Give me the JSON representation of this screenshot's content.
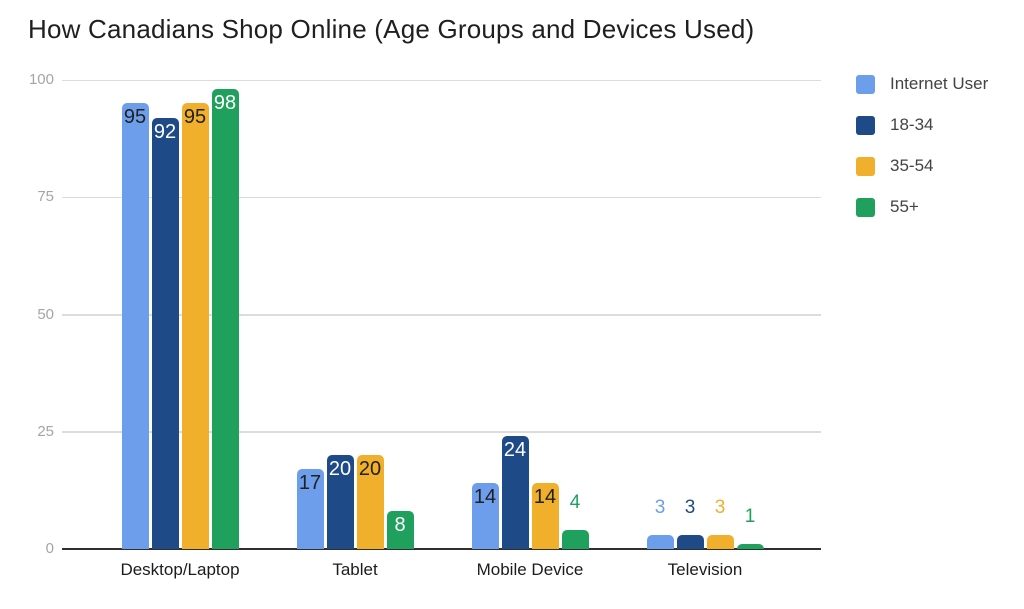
{
  "title": "How Canadians Shop Online (Age Groups and Devices Used)",
  "chart_data": {
    "type": "bar",
    "title": "How Canadians Shop Online (Age Groups and Devices Used)",
    "categories": [
      "Desktop/Laptop",
      "Tablet",
      "Mobile Device",
      "Television"
    ],
    "series": [
      {
        "name": "Internet User",
        "color": "#6d9eeb",
        "label_text_color": "#212121",
        "values": [
          95,
          17,
          14,
          3
        ]
      },
      {
        "name": "18-34",
        "color": "#1e4a87",
        "label_text_color": "#ffffff",
        "values": [
          92,
          20,
          24,
          3
        ]
      },
      {
        "name": "35-54",
        "color": "#f0b02c",
        "label_text_color": "#212121",
        "values": [
          95,
          20,
          14,
          3
        ]
      },
      {
        "name": "55+",
        "color": "#1fa05c",
        "label_text_color": "#ffffff",
        "values": [
          98,
          8,
          4,
          1
        ]
      }
    ],
    "xlabel": "",
    "ylabel": "",
    "y_axis": {
      "ticks": [
        0,
        25,
        50,
        75,
        100
      ],
      "range": [
        0,
        100
      ]
    },
    "grid": true,
    "legend_position": "right",
    "annotation_style": "value labels shown inside tall bars (black on light series, white on dark series) and above short bars in the series color",
    "colors": {
      "gridline": "#dcdcdc",
      "axis_line": "#2f2f2f",
      "y_tick_text": "#a5a5a5",
      "x_tick_text": "#1c1c1c",
      "legend_text": "#434343",
      "title_text": "#1f1f1f",
      "background": "#ffffff"
    }
  }
}
